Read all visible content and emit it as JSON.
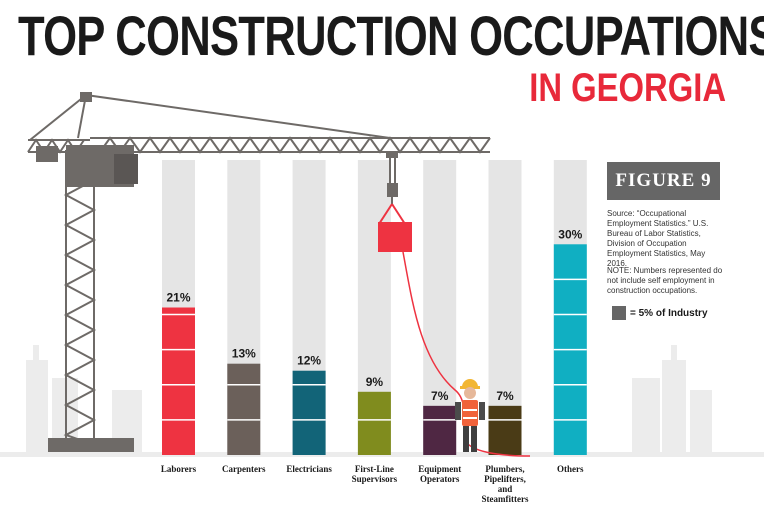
{
  "title": "TOP CONSTRUCTION OCCUPATIONS",
  "subtitle": "IN GEORGIA",
  "figure_label": "FIGURE 9",
  "source_note": "Source: “Occupational Employment Statistics.” U.S. Bureau of Labor Statistics, Division of Occupation Employment Statistics, May 2016.",
  "count_note": "NOTE: Numbers represented do not include self employment in construction occupations.",
  "legend": {
    "label": "= 5% of Industry",
    "swatch_color": "#666666"
  },
  "colors": {
    "track": "#e5e5e5",
    "title": "#1a1a1a",
    "accent": "#e8293a",
    "crane": "#6e6a67"
  },
  "chart_data": {
    "type": "bar",
    "categories": [
      "Laborers",
      "Carpenters",
      "Electricians",
      "First-Line Supervisors",
      "Equipment Operators",
      "Plumbers, Pipelifters, and Steamfitters",
      "Others"
    ],
    "category_lines": [
      [
        "Laborers"
      ],
      [
        "Carpenters"
      ],
      [
        "Electricians"
      ],
      [
        "First-Line",
        "Supervisors"
      ],
      [
        "Equipment",
        "Operators"
      ],
      [
        "Plumbers,",
        "Pipelifters,",
        "and",
        "Steamfitters"
      ],
      [
        "Others"
      ]
    ],
    "values": [
      21,
      13,
      12,
      9,
      7,
      7,
      30
    ],
    "value_labels": [
      "21%",
      "13%",
      "12%",
      "9%",
      "7%",
      "7%",
      "30%"
    ],
    "colors": [
      "#ee3341",
      "#6b605a",
      "#126478",
      "#808c1e",
      "#4f2743",
      "#4a3b16",
      "#10afc2"
    ],
    "unit": "%",
    "ylim": [
      0,
      42
    ],
    "segment_size": 5
  }
}
